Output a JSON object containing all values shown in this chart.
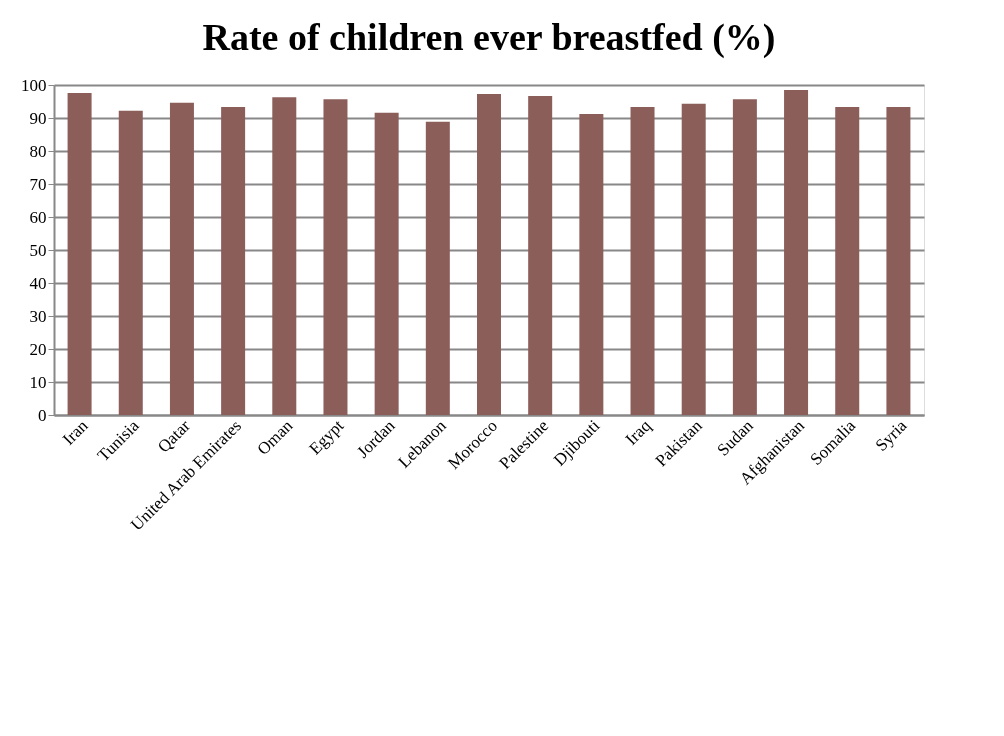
{
  "chart_data": {
    "type": "bar",
    "title": "Rate of children ever breastfed  (%)",
    "categories": [
      "Iran",
      "Tunisia",
      "Qatar",
      "United Arab Emirates",
      "Oman",
      "Egypt",
      "Jordan",
      "Lebanon",
      "Morocco",
      "Palestine",
      "Djibouti",
      "Iraq",
      "Pakistan",
      "Sudan",
      "Afghanistan",
      "Somalia",
      "Syria"
    ],
    "values": [
      97.6,
      92.2,
      94.6,
      93.3,
      96.3,
      95.7,
      91.6,
      88.9,
      97.3,
      96.7,
      91.2,
      93.3,
      94.3,
      95.7,
      98.5,
      93.3,
      93.3
    ],
    "color": "#8b5e5a",
    "ylim": [
      0,
      100
    ],
    "yticks": [
      0,
      10,
      20,
      30,
      40,
      50,
      60,
      70,
      80,
      90,
      100
    ],
    "grid": "y"
  }
}
